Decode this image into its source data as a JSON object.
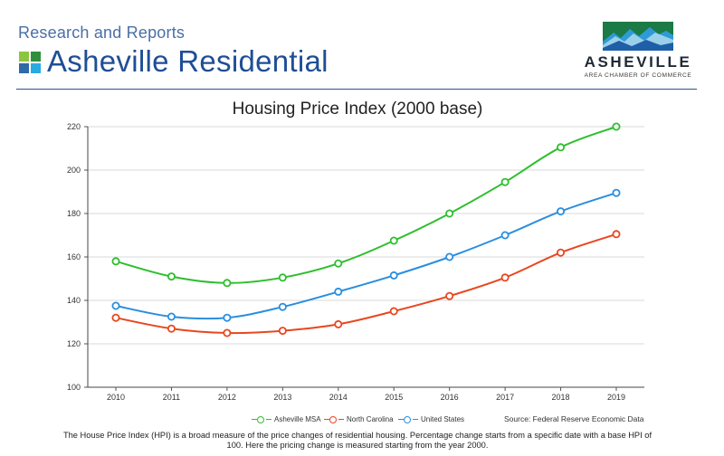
{
  "header": {
    "section_label": "Research and Reports",
    "page_title": "Asheville Residential"
  },
  "org_logo": {
    "name": "ASHEVILLE",
    "subtitle": "AREA CHAMBER OF COMMERCE"
  },
  "colors": {
    "brand_blue": "#1f4e96",
    "asheville": "#2dbf2d",
    "north_carolina": "#e8471f",
    "united_states": "#2a8ee0"
  },
  "chart_data": {
    "type": "line",
    "title": "Housing Price Index (2000 base)",
    "xlabel": "",
    "ylabel": "",
    "categories": [
      "2010",
      "2011",
      "2012",
      "2013",
      "2014",
      "2015",
      "2016",
      "2017",
      "2018",
      "2019"
    ],
    "ylim": [
      100,
      220
    ],
    "yticks": [
      100,
      120,
      140,
      160,
      180,
      200,
      220
    ],
    "grid": true,
    "legend_position": "bottom",
    "series": [
      {
        "name": "Asheville MSA",
        "color": "#2dbf2d",
        "values": [
          158,
          151,
          148,
          150.5,
          157,
          167.5,
          180,
          194.5,
          210.5,
          220
        ]
      },
      {
        "name": "North Carolina",
        "color": "#e8471f",
        "values": [
          132,
          127,
          125,
          126,
          129,
          135,
          142,
          150.5,
          162,
          170.5
        ]
      },
      {
        "name": "United States",
        "color": "#2a8ee0",
        "values": [
          137.5,
          132.5,
          132,
          137,
          144,
          151.5,
          160,
          170,
          181,
          189.5
        ]
      }
    ]
  },
  "source": "Source: Federal Reserve Economic Data",
  "footnote": "The House Price Index (HPI) is a broad measure of the price changes of residential housing. Percentage change starts from a specific date with a base HPI of 100. Here the pricing change is measured starting from the year 2000."
}
